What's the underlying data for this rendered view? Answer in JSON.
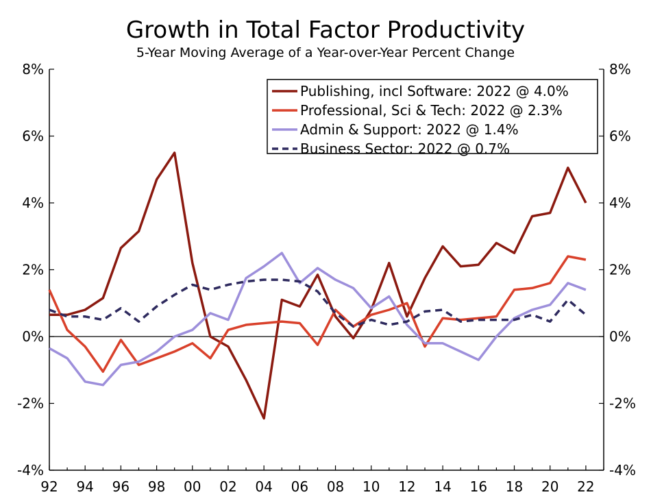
{
  "chart_data": {
    "type": "line",
    "title": "Growth in Total Factor Productivity",
    "subtitle": "5-Year Moving Average of a Year-over-Year Percent Change",
    "x": [
      1992,
      1993,
      1994,
      1995,
      1996,
      1997,
      1998,
      1999,
      2000,
      2001,
      2002,
      2003,
      2004,
      2005,
      2006,
      2007,
      2008,
      2009,
      2010,
      2011,
      2012,
      2013,
      2014,
      2015,
      2016,
      2017,
      2018,
      2019,
      2020,
      2021,
      2022
    ],
    "x_tick_labels": [
      "92",
      "94",
      "96",
      "98",
      "00",
      "02",
      "04",
      "06",
      "08",
      "10",
      "12",
      "14",
      "16",
      "18",
      "20",
      "22"
    ],
    "y_tick_labels_left": [
      "8%",
      "6%",
      "4%",
      "2%",
      "0%",
      "-2%",
      "-4%"
    ],
    "y_tick_labels_right": [
      "8%",
      "6%",
      "4%",
      "2%",
      "0%",
      "-2%",
      "-4%"
    ],
    "ylim": [
      -4,
      8
    ],
    "xlim": [
      1992,
      2023
    ],
    "grid": false,
    "legend_position": "top-right",
    "series": [
      {
        "name": "Publishing, incl Software: 2022 @ 4.0%",
        "color": "#8b1a10",
        "dash": "solid",
        "values": [
          0.65,
          0.65,
          0.8,
          1.15,
          2.65,
          3.15,
          4.7,
          5.5,
          2.2,
          0.0,
          -0.3,
          -1.3,
          -2.45,
          1.1,
          0.9,
          1.85,
          0.6,
          -0.05,
          0.8,
          2.2,
          0.6,
          1.75,
          2.7,
          2.1,
          2.15,
          2.8,
          2.5,
          3.6,
          3.7,
          5.05,
          4.0
        ]
      },
      {
        "name": "Professional, Sci & Tech: 2022 @ 2.3%",
        "color": "#d9412b",
        "dash": "solid",
        "values": [
          1.4,
          0.2,
          -0.3,
          -1.05,
          -0.1,
          -0.85,
          -0.65,
          -0.45,
          -0.2,
          -0.65,
          0.2,
          0.35,
          0.4,
          0.45,
          0.4,
          -0.25,
          0.8,
          0.3,
          0.65,
          0.8,
          1.0,
          -0.3,
          0.55,
          0.5,
          0.55,
          0.6,
          1.4,
          1.45,
          1.6,
          2.4,
          2.3
        ]
      },
      {
        "name": "Admin & Support: 2022 @ 1.4%",
        "color": "#9d8fdb",
        "dash": "solid",
        "values": [
          -0.35,
          -0.65,
          -1.35,
          -1.45,
          -0.85,
          -0.75,
          -0.45,
          0.0,
          0.2,
          0.7,
          0.5,
          1.75,
          2.1,
          2.5,
          1.6,
          2.05,
          1.7,
          1.45,
          0.85,
          1.2,
          0.35,
          -0.2,
          -0.2,
          -0.45,
          -0.7,
          0.0,
          0.55,
          0.8,
          0.95,
          1.6,
          1.4
        ]
      },
      {
        "name": "Business Sector: 2022 @ 0.7%",
        "color": "#2e2a5e",
        "dash": "dashed",
        "values": [
          0.8,
          0.6,
          0.6,
          0.5,
          0.85,
          0.45,
          0.9,
          1.25,
          1.55,
          1.4,
          1.55,
          1.65,
          1.7,
          1.7,
          1.65,
          1.35,
          0.7,
          0.3,
          0.5,
          0.35,
          0.45,
          0.75,
          0.8,
          0.45,
          0.5,
          0.5,
          0.5,
          0.65,
          0.45,
          1.1,
          0.65
        ]
      }
    ]
  }
}
